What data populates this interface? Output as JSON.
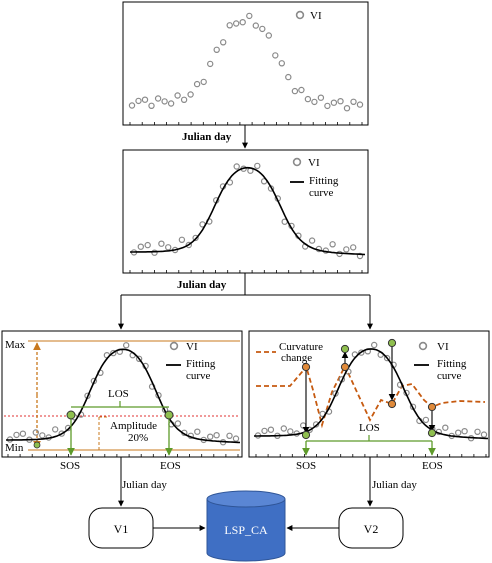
{
  "panel1": {
    "legend_vi": "VI",
    "xlabel": "Julian day"
  },
  "panel2": {
    "legend_vi": "VI",
    "legend_fit_1": "Fitting",
    "legend_fit_2": "curve",
    "xlabel": "Julian day"
  },
  "panel3": {
    "legend_vi": "VI",
    "legend_fit_1": "Fitting",
    "legend_fit_2": "curve",
    "max_label": "Max",
    "min_label": "Min",
    "los_label": "LOS",
    "amplitude_label_1": "Amplitude",
    "amplitude_label_2": "20%",
    "sos_label": "SOS",
    "eos_label": "EOS",
    "xlabel": "Julian day"
  },
  "panel4": {
    "legend_vi": "VI",
    "legend_fit_1": "Fitting",
    "legend_fit_2": "curve",
    "curvature_label_1": "Curvature",
    "curvature_label_2": "change",
    "los_label": "LOS",
    "sos_label": "SOS",
    "eos_label": "EOS",
    "xlabel": "Julian day"
  },
  "node_v1": "V1",
  "node_v2": "V2",
  "node_db": "LSP_CA",
  "colors": {
    "vi_marker": "#8a8a8a",
    "fit_curve": "#000000",
    "orange": "#c8781e",
    "curvature": "#c65a10",
    "green": "#5e9a2a",
    "red_threshold": "#e03030",
    "database": "#3f6fc4",
    "database_dark": "#2f5597"
  }
}
